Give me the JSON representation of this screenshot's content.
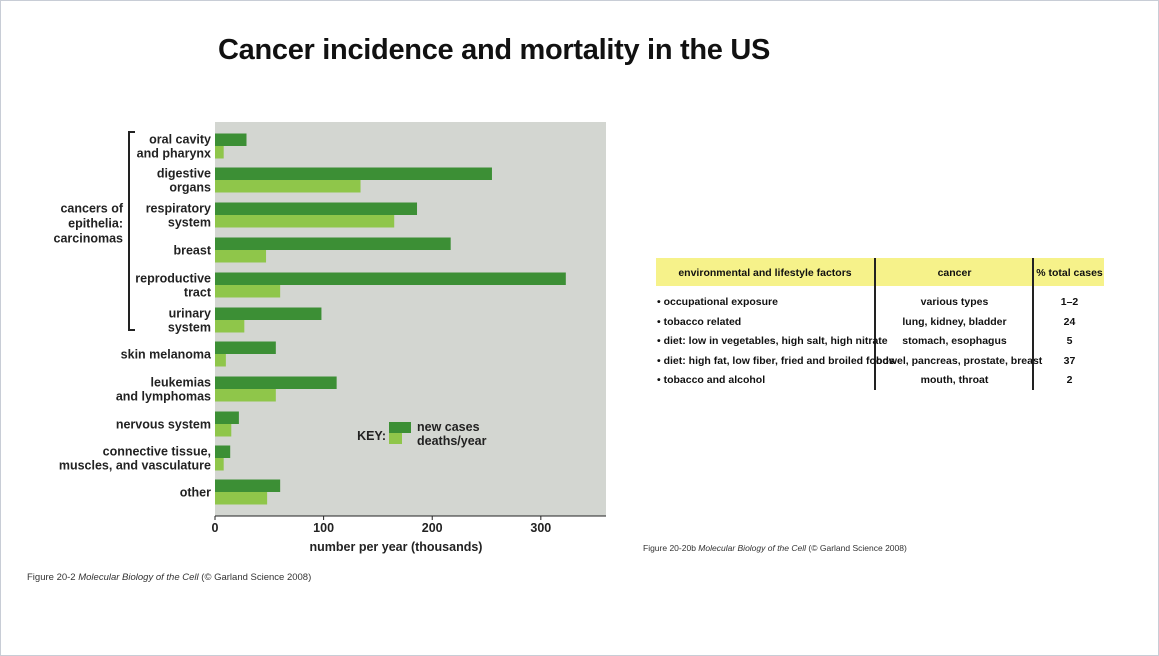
{
  "slide": {
    "title": "Cancer incidence and mortality in the US"
  },
  "chart_data": {
    "type": "bar",
    "orientation": "horizontal",
    "categories": [
      "oral cavity\nand pharynx",
      "digestive\norgans",
      "respiratory\nsystem",
      "breast",
      "reproductive\ntract",
      "urinary\nsystem",
      "skin melanoma",
      "leukemias\nand lymphomas",
      "nervous system",
      "connective tissue,\nmuscles, and vasculature",
      "other"
    ],
    "series": [
      {
        "name": "new cases",
        "color": "#3c8f35",
        "values": [
          29,
          255,
          186,
          217,
          323,
          98,
          56,
          112,
          22,
          14,
          60
        ]
      },
      {
        "name": "deaths/year",
        "color": "#8fc64a",
        "values": [
          8,
          134,
          165,
          47,
          60,
          27,
          10,
          56,
          15,
          8,
          48
        ]
      }
    ],
    "group_label": "cancers of\nepithelia:\ncarcinomas",
    "group_size": 6,
    "key_label": "KEY:",
    "xlabel": "number per year (thousands)",
    "xlim": [
      0,
      360
    ],
    "xticks": [
      0,
      100,
      200,
      300
    ],
    "background": "#d3d6d1",
    "grid": false,
    "legend_position": "inside-lower-right"
  },
  "captions": {
    "left": {
      "prefix": "Figure 20-2",
      "book": "Molecular Biology of the Cell",
      "suffix": "(© Garland Science 2008)"
    },
    "right": {
      "prefix": "Figure 20-20b",
      "book": "Molecular Biology of the Cell",
      "suffix": "(© Garland Science 2008)"
    }
  },
  "factors_table": {
    "header_color": "#f6f28a",
    "headers": {
      "factor": "environmental and lifestyle factors",
      "cancer": "cancer",
      "percent": "% total cases"
    },
    "rows": [
      {
        "factor": "• occupational exposure",
        "cancer": "various types",
        "percent": "1–2"
      },
      {
        "factor": "• tobacco related",
        "cancer": "lung, kidney, bladder",
        "percent": "24"
      },
      {
        "factor": "• diet: low in vegetables, high salt, high nitrate",
        "cancer": "stomach, esophagus",
        "percent": "5"
      },
      {
        "factor": "• diet: high fat, low fiber, fried and broiled foods",
        "cancer": "bowel, pancreas, prostate, breast",
        "percent": "37"
      },
      {
        "factor": "• tobacco and alcohol",
        "cancer": "mouth, throat",
        "percent": "2"
      }
    ]
  }
}
